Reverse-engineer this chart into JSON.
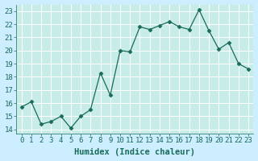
{
  "x": [
    0,
    1,
    2,
    3,
    4,
    5,
    6,
    7,
    8,
    9,
    10,
    11,
    12,
    13,
    14,
    15,
    16,
    17,
    18,
    19,
    20,
    21,
    22,
    23
  ],
  "y": [
    15.7,
    16.1,
    14.4,
    14.6,
    15.0,
    14.1,
    15.0,
    15.5,
    18.3,
    16.6,
    20.0,
    19.9,
    21.8,
    21.6,
    21.9,
    22.2,
    21.8,
    21.6,
    23.1,
    21.5,
    20.1,
    20.6,
    19.0,
    18.6
  ],
  "xlabel": "Humidex (Indice chaleur)",
  "xlim": [
    -0.5,
    23.5
  ],
  "ylim": [
    13.7,
    23.5
  ],
  "yticks": [
    14,
    15,
    16,
    17,
    18,
    19,
    20,
    21,
    22,
    23
  ],
  "xticks": [
    0,
    1,
    2,
    3,
    4,
    5,
    6,
    7,
    8,
    9,
    10,
    11,
    12,
    13,
    14,
    15,
    16,
    17,
    18,
    19,
    20,
    21,
    22,
    23
  ],
  "line_color": "#1a6b5a",
  "marker": "D",
  "marker_size": 2.5,
  "bg_color": "#cceeff",
  "plot_bg_color": "#c8ece8",
  "grid_color": "#ffffff",
  "tick_color": "#1a6b5a",
  "tick_label_fontsize": 6.5,
  "xlabel_fontsize": 7.5,
  "xlabel_fontweight": "bold"
}
